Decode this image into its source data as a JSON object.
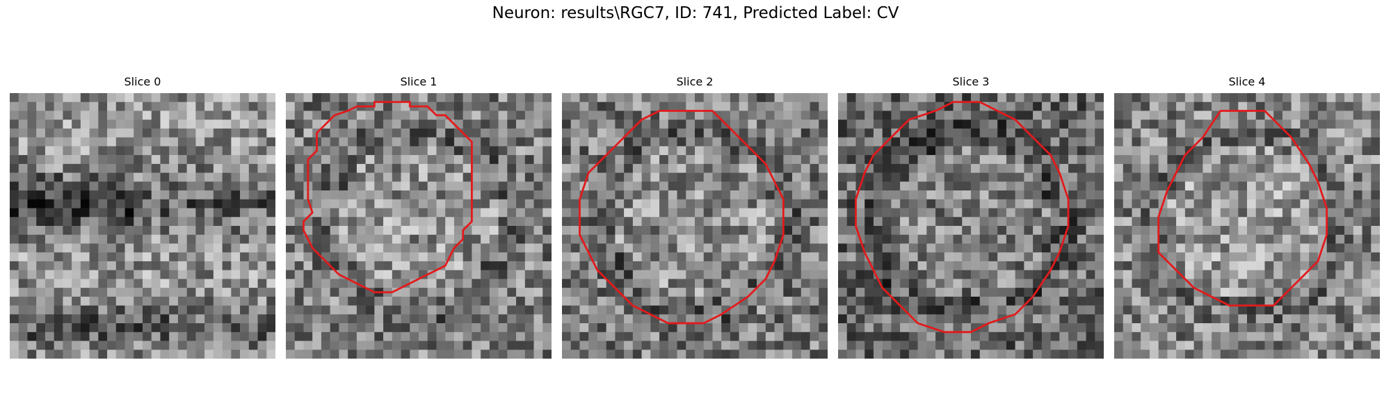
{
  "figure": {
    "title": "Neuron: results\\RGC7, ID: 741, Predicted Label: CV"
  },
  "panels": [
    {
      "title": "Slice 0",
      "pattern": "band",
      "mean": 0.58,
      "outline": []
    },
    {
      "title": "Slice 1",
      "pattern": "blob",
      "mean": 0.5,
      "outline": [
        [
          14,
          1.5
        ],
        [
          16,
          1.5
        ],
        [
          17,
          2.5
        ],
        [
          18,
          2.5
        ],
        [
          21,
          5.5
        ],
        [
          21,
          14.5
        ],
        [
          20,
          15.5
        ],
        [
          20,
          16.5
        ],
        [
          19,
          17.5
        ],
        [
          18,
          19.5
        ],
        [
          15,
          21
        ],
        [
          14,
          21.5
        ],
        [
          12,
          22.5
        ],
        [
          10,
          22.5
        ],
        [
          8,
          21.5
        ],
        [
          7,
          21
        ],
        [
          6,
          20.5
        ],
        [
          4,
          18.5
        ],
        [
          3,
          17.5
        ],
        [
          2,
          15.5
        ],
        [
          2,
          14.5
        ],
        [
          3,
          13.5
        ],
        [
          2.5,
          12
        ],
        [
          2.5,
          7.5
        ],
        [
          3.5,
          6.5
        ],
        [
          3.5,
          4.5
        ],
        [
          4.5,
          3.5
        ],
        [
          5.5,
          2.5
        ],
        [
          7,
          2
        ],
        [
          8,
          1.5
        ],
        [
          10,
          1.5
        ],
        [
          10,
          1
        ],
        [
          14,
          1
        ]
      ]
    },
    {
      "title": "Slice 2",
      "pattern": "blob",
      "mean": 0.48,
      "outline": [
        [
          15,
          2
        ],
        [
          17,
          2
        ],
        [
          18,
          3
        ],
        [
          20,
          5
        ],
        [
          21,
          6
        ],
        [
          23,
          8
        ],
        [
          24,
          10
        ],
        [
          25,
          12
        ],
        [
          25,
          16
        ],
        [
          24,
          19
        ],
        [
          23,
          21
        ],
        [
          21,
          23
        ],
        [
          18,
          25
        ],
        [
          16,
          26
        ],
        [
          12,
          26
        ],
        [
          10,
          25
        ],
        [
          8,
          24
        ],
        [
          6,
          22
        ],
        [
          4,
          20
        ],
        [
          3,
          18
        ],
        [
          2,
          16
        ],
        [
          2,
          12
        ],
        [
          3,
          9
        ],
        [
          5,
          7
        ],
        [
          7,
          5
        ],
        [
          9,
          3
        ],
        [
          11,
          2
        ],
        [
          15,
          2
        ]
      ]
    },
    {
      "title": "Slice 3",
      "pattern": "blob",
      "mean": 0.42,
      "outline": [
        [
          13,
          1
        ],
        [
          16,
          1
        ],
        [
          18,
          2
        ],
        [
          20,
          3
        ],
        [
          22,
          5
        ],
        [
          24,
          7
        ],
        [
          25,
          9
        ],
        [
          26,
          12
        ],
        [
          26,
          15
        ],
        [
          25,
          18
        ],
        [
          24,
          20
        ],
        [
          22,
          23
        ],
        [
          20,
          25
        ],
        [
          17,
          26
        ],
        [
          15,
          27
        ],
        [
          12,
          27
        ],
        [
          9,
          26
        ],
        [
          7,
          24
        ],
        [
          5,
          22
        ],
        [
          4,
          20
        ],
        [
          3,
          18
        ],
        [
          2,
          15
        ],
        [
          2,
          12
        ],
        [
          3,
          9
        ],
        [
          4,
          7
        ],
        [
          6,
          5
        ],
        [
          8,
          3
        ],
        [
          11,
          2
        ],
        [
          13,
          1
        ]
      ]
    },
    {
      "title": "Slice 4",
      "pattern": "blob",
      "mean": 0.52,
      "outline": [
        [
          12,
          2
        ],
        [
          17,
          2
        ],
        [
          20,
          5
        ],
        [
          22,
          8
        ],
        [
          23,
          10
        ],
        [
          24,
          13
        ],
        [
          24,
          16
        ],
        [
          23,
          19
        ],
        [
          21,
          21
        ],
        [
          19,
          23
        ],
        [
          18,
          24
        ],
        [
          13,
          24
        ],
        [
          11,
          23
        ],
        [
          9,
          22
        ],
        [
          7,
          20
        ],
        [
          5,
          18
        ],
        [
          5,
          14
        ],
        [
          6,
          11
        ],
        [
          7,
          9
        ],
        [
          8,
          7
        ],
        [
          10,
          5
        ],
        [
          12,
          2
        ]
      ]
    }
  ],
  "colors": {
    "contour": "#e31a1c",
    "background": "#ffffff"
  }
}
